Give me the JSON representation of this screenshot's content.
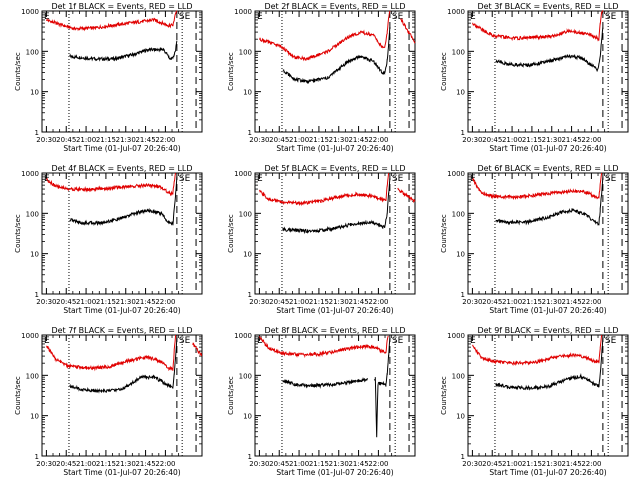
{
  "figure": {
    "background": "#ffffff",
    "event_color": "#000000",
    "lld_color": "#e00000",
    "ylabel": "Counts/sec",
    "xlabel": "Start Time (01-Jul-07 20:26:40)",
    "x_ticks": [
      "20:30",
      "20:45",
      "21:00",
      "21:15",
      "21:30",
      "21:45",
      "22:00"
    ],
    "y_ticks": [
      "1",
      "10",
      "100",
      "1000"
    ],
    "annotation_e": "E",
    "annotation_se": "SE"
  },
  "chart_data": [
    {
      "type": "line",
      "title": "Det 1f BLACK = Events, RED = LLD",
      "scale": "log",
      "xlim_min": [
        203.33,
        223.83
      ],
      "ylim": [
        1,
        1000
      ],
      "gap": null,
      "dip": null,
      "series": [
        {
          "name": "BLACK = Events",
          "x": [
            20.4,
            21,
            40,
            55,
            70,
            80,
            92,
            96,
            98,
            100,
            101,
            102
          ],
          "y": [
            null,
            75,
            65,
            65,
            85,
            110,
            110,
            72,
            62,
            80,
            110,
            180
          ]
        },
        {
          "name": "RED = LLD",
          "x": [
            3.5,
            12,
            25,
            40,
            55,
            70,
            85,
            96,
            99,
            100,
            101,
            102,
            105,
            110,
            115,
            121
          ],
          "y": [
            600,
            480,
            360,
            380,
            450,
            520,
            600,
            430,
            450,
            620,
            850,
            1000,
            null,
            null,
            null,
            800
          ]
        }
      ]
    },
    {
      "type": "line",
      "title": "Det 2f BLACK = Events, RED = LLD",
      "scale": "log",
      "xlim_min": [
        203.33,
        223.83
      ],
      "ylim": [
        1,
        1000
      ],
      "gap": null,
      "dip": null,
      "series": [
        {
          "name": "BLACK = Events",
          "x": [
            20.4,
            21,
            30,
            40,
            55,
            70,
            80,
            90,
            96,
            98,
            100,
            101,
            102
          ],
          "y": [
            null,
            35,
            20,
            18,
            22,
            55,
            75,
            55,
            30,
            28,
            60,
            150,
            400
          ]
        },
        {
          "name": "RED = LLD",
          "x": [
            3.5,
            10,
            20,
            30,
            40,
            55,
            70,
            80,
            90,
            96,
            98,
            100,
            101,
            102,
            106,
            110,
            115,
            121
          ],
          "y": [
            200,
            170,
            130,
            70,
            65,
            100,
            220,
            300,
            240,
            130,
            120,
            300,
            700,
            1000,
            null,
            650,
            350,
            160
          ]
        }
      ]
    },
    {
      "type": "line",
      "title": "Det 3f BLACK = Events, RED = LLD",
      "scale": "log",
      "xlim_min": [
        203.33,
        223.83
      ],
      "ylim": [
        1,
        1000
      ],
      "gap": null,
      "dip": null,
      "series": [
        {
          "name": "BLACK = Events",
          "x": [
            20.4,
            21,
            30,
            45,
            60,
            75,
            85,
            96,
            98,
            100,
            101,
            102
          ],
          "y": [
            null,
            60,
            48,
            45,
            55,
            75,
            70,
            40,
            35,
            70,
            180,
            400
          ]
        },
        {
          "name": "RED = LLD",
          "x": [
            3.5,
            10,
            20,
            35,
            50,
            65,
            75,
            90,
            96,
            99,
            100,
            101,
            102,
            107,
            112,
            121
          ],
          "y": [
            500,
            350,
            240,
            210,
            220,
            240,
            320,
            270,
            230,
            200,
            480,
            900,
            1000,
            null,
            null,
            800
          ]
        }
      ]
    },
    {
      "type": "line",
      "title": "Det 4f BLACK = Events, RED = LLD",
      "scale": "log",
      "xlim_min": [
        203.33,
        223.83
      ],
      "ylim": [
        1,
        1000
      ],
      "gap": null,
      "dip": null,
      "series": [
        {
          "name": "BLACK = Events",
          "x": [
            20.4,
            21,
            30,
            45,
            60,
            72,
            80,
            90,
            96,
            99,
            100,
            101,
            102
          ],
          "y": [
            null,
            70,
            58,
            58,
            75,
            105,
            120,
            100,
            60,
            55,
            120,
            300,
            800
          ]
        },
        {
          "name": "RED = LLD",
          "x": [
            3.5,
            10,
            20,
            35,
            50,
            65,
            80,
            90,
            96,
            99,
            100,
            101,
            102,
            110,
            115,
            121
          ],
          "y": [
            700,
            480,
            400,
            390,
            420,
            460,
            500,
            450,
            320,
            300,
            650,
            1000,
            null,
            null,
            null,
            850
          ]
        }
      ]
    },
    {
      "type": "line",
      "title": "Det 5f BLACK = Events, RED = LLD",
      "scale": "log",
      "xlim_min": [
        203.33,
        223.83
      ],
      "ylim": [
        1,
        1000
      ],
      "gap": null,
      "dip": null,
      "series": [
        {
          "name": "BLACK = Events",
          "x": [
            20.4,
            21,
            30,
            45,
            60,
            75,
            88,
            96,
            98,
            100,
            101,
            102
          ],
          "y": [
            null,
            40,
            38,
            36,
            42,
            55,
            62,
            48,
            45,
            100,
            300,
            700
          ]
        },
        {
          "name": "RED = LLD",
          "x": [
            3.5,
            10,
            20,
            35,
            50,
            65,
            80,
            90,
            96,
            99,
            100,
            101,
            102,
            108,
            113,
            121
          ],
          "y": [
            350,
            230,
            190,
            180,
            200,
            270,
            300,
            260,
            220,
            210,
            500,
            1000,
            null,
            400,
            300,
            200
          ]
        }
      ]
    },
    {
      "type": "line",
      "title": "Det 6f BLACK = Events, RED = LLD",
      "scale": "log",
      "xlim_min": [
        203.33,
        223.83
      ],
      "ylim": [
        1,
        1000
      ],
      "gap": null,
      "dip": null,
      "series": [
        {
          "name": "BLACK = Events",
          "x": [
            20.4,
            21,
            30,
            45,
            60,
            72,
            80,
            90,
            96,
            99,
            100,
            101,
            102
          ],
          "y": [
            null,
            65,
            60,
            60,
            80,
            110,
            120,
            90,
            60,
            55,
            120,
            300,
            800
          ]
        },
        {
          "name": "RED = LLD",
          "x": [
            3.5,
            10,
            20,
            35,
            50,
            65,
            80,
            90,
            96,
            99,
            100,
            101,
            102,
            110,
            115,
            121
          ],
          "y": [
            700,
            320,
            260,
            250,
            280,
            320,
            360,
            330,
            260,
            240,
            500,
            1000,
            null,
            null,
            null,
            900
          ]
        }
      ]
    },
    {
      "type": "line",
      "title": "Det 7f BLACK = Events, RED = LLD",
      "scale": "log",
      "xlim_min": [
        203.33,
        223.83
      ],
      "ylim": [
        1,
        1000
      ],
      "gap": null,
      "dip": null,
      "series": [
        {
          "name": "BLACK = Events",
          "x": [
            20.4,
            21,
            30,
            45,
            60,
            75,
            85,
            96,
            99,
            100,
            101,
            102
          ],
          "y": [
            null,
            55,
            45,
            40,
            45,
            90,
            90,
            55,
            50,
            110,
            300,
            800
          ]
        },
        {
          "name": "RED = LLD",
          "x": [
            3.5,
            10,
            20,
            35,
            50,
            65,
            80,
            90,
            96,
            99,
            100,
            101,
            102,
            109,
            114,
            121
          ],
          "y": [
            550,
            250,
            170,
            150,
            160,
            230,
            280,
            220,
            150,
            140,
            400,
            1000,
            null,
            null,
            600,
            300
          ]
        }
      ]
    },
    {
      "type": "line",
      "title": "Det 8f BLACK = Events, RED = LLD",
      "scale": "log",
      "xlim_min": [
        203.33,
        223.83
      ],
      "ylim": [
        1,
        1000
      ],
      "gap": [
        86,
        88
      ],
      "dip": [
        92,
        3
      ],
      "series": [
        {
          "name": "BLACK = Events",
          "x": [
            20.4,
            21,
            30,
            45,
            60,
            75,
            85,
            86,
            88,
            90,
            91,
            92,
            93,
            96,
            99,
            100,
            101,
            102
          ],
          "y": [
            null,
            75,
            60,
            55,
            60,
            70,
            80,
            null,
            null,
            70,
            85,
            3,
            60,
            65,
            55,
            110,
            300,
            800
          ]
        },
        {
          "name": "RED = LLD",
          "x": [
            3.5,
            10,
            20,
            35,
            50,
            65,
            80,
            90,
            96,
            99,
            100,
            101,
            102,
            110,
            115,
            121
          ],
          "y": [
            900,
            480,
            350,
            320,
            340,
            420,
            520,
            500,
            400,
            380,
            700,
            1000,
            null,
            null,
            null,
            900
          ]
        }
      ]
    },
    {
      "type": "line",
      "title": "Det 9f BLACK = Events, RED = LLD",
      "scale": "log",
      "xlim_min": [
        203.33,
        223.83
      ],
      "ylim": [
        1,
        1000
      ],
      "gap": null,
      "dip": null,
      "series": [
        {
          "name": "BLACK = Events",
          "x": [
            20.4,
            21,
            30,
            45,
            60,
            75,
            85,
            96,
            99,
            100,
            101,
            102
          ],
          "y": [
            null,
            60,
            52,
            48,
            52,
            80,
            95,
            60,
            55,
            110,
            300,
            800
          ]
        },
        {
          "name": "RED = LLD",
          "x": [
            3.5,
            10,
            20,
            35,
            50,
            65,
            80,
            90,
            96,
            99,
            100,
            101,
            102,
            110,
            115,
            121
          ],
          "y": [
            550,
            280,
            220,
            200,
            210,
            280,
            320,
            270,
            220,
            210,
            450,
            1000,
            null,
            null,
            null,
            800
          ]
        }
      ]
    }
  ]
}
